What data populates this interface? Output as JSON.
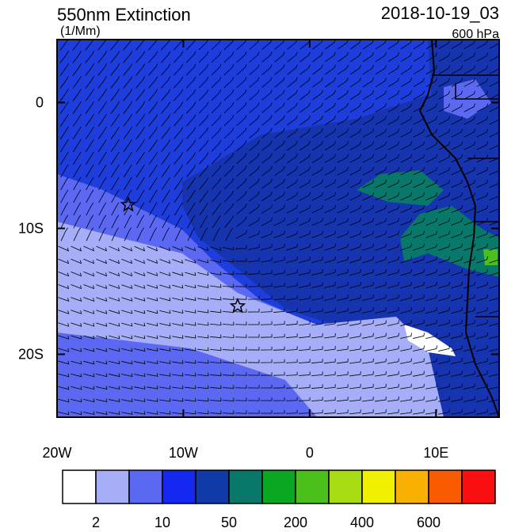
{
  "header": {
    "title": "550nm Extinction",
    "units": "(1/Mm)",
    "time": "2018-10-19_03",
    "level": "600 hPa"
  },
  "map": {
    "lon_range": [
      -20,
      15
    ],
    "lat_range": [
      -25,
      5
    ],
    "lat_ticks": [
      {
        "value": 0,
        "label": "0"
      },
      {
        "value": -10,
        "label": "10S"
      },
      {
        "value": -20,
        "label": "20S"
      }
    ],
    "lon_ticks": [
      {
        "value": -20,
        "label": "20W"
      },
      {
        "value": -10,
        "label": "10W"
      },
      {
        "value": 0,
        "label": "0"
      },
      {
        "value": 10,
        "label": "10E"
      }
    ]
  },
  "colorbar": {
    "colors": [
      "#ffffff",
      "#a6aef7",
      "#5b68f2",
      "#1428f0",
      "#0f3aa8",
      "#08786a",
      "#0aa820",
      "#4cc01a",
      "#a8dc12",
      "#f0f000",
      "#fab000",
      "#fa5a00",
      "#fa1010"
    ],
    "labels": [
      "2",
      "10",
      "50",
      "200",
      "400",
      "600"
    ]
  }
}
